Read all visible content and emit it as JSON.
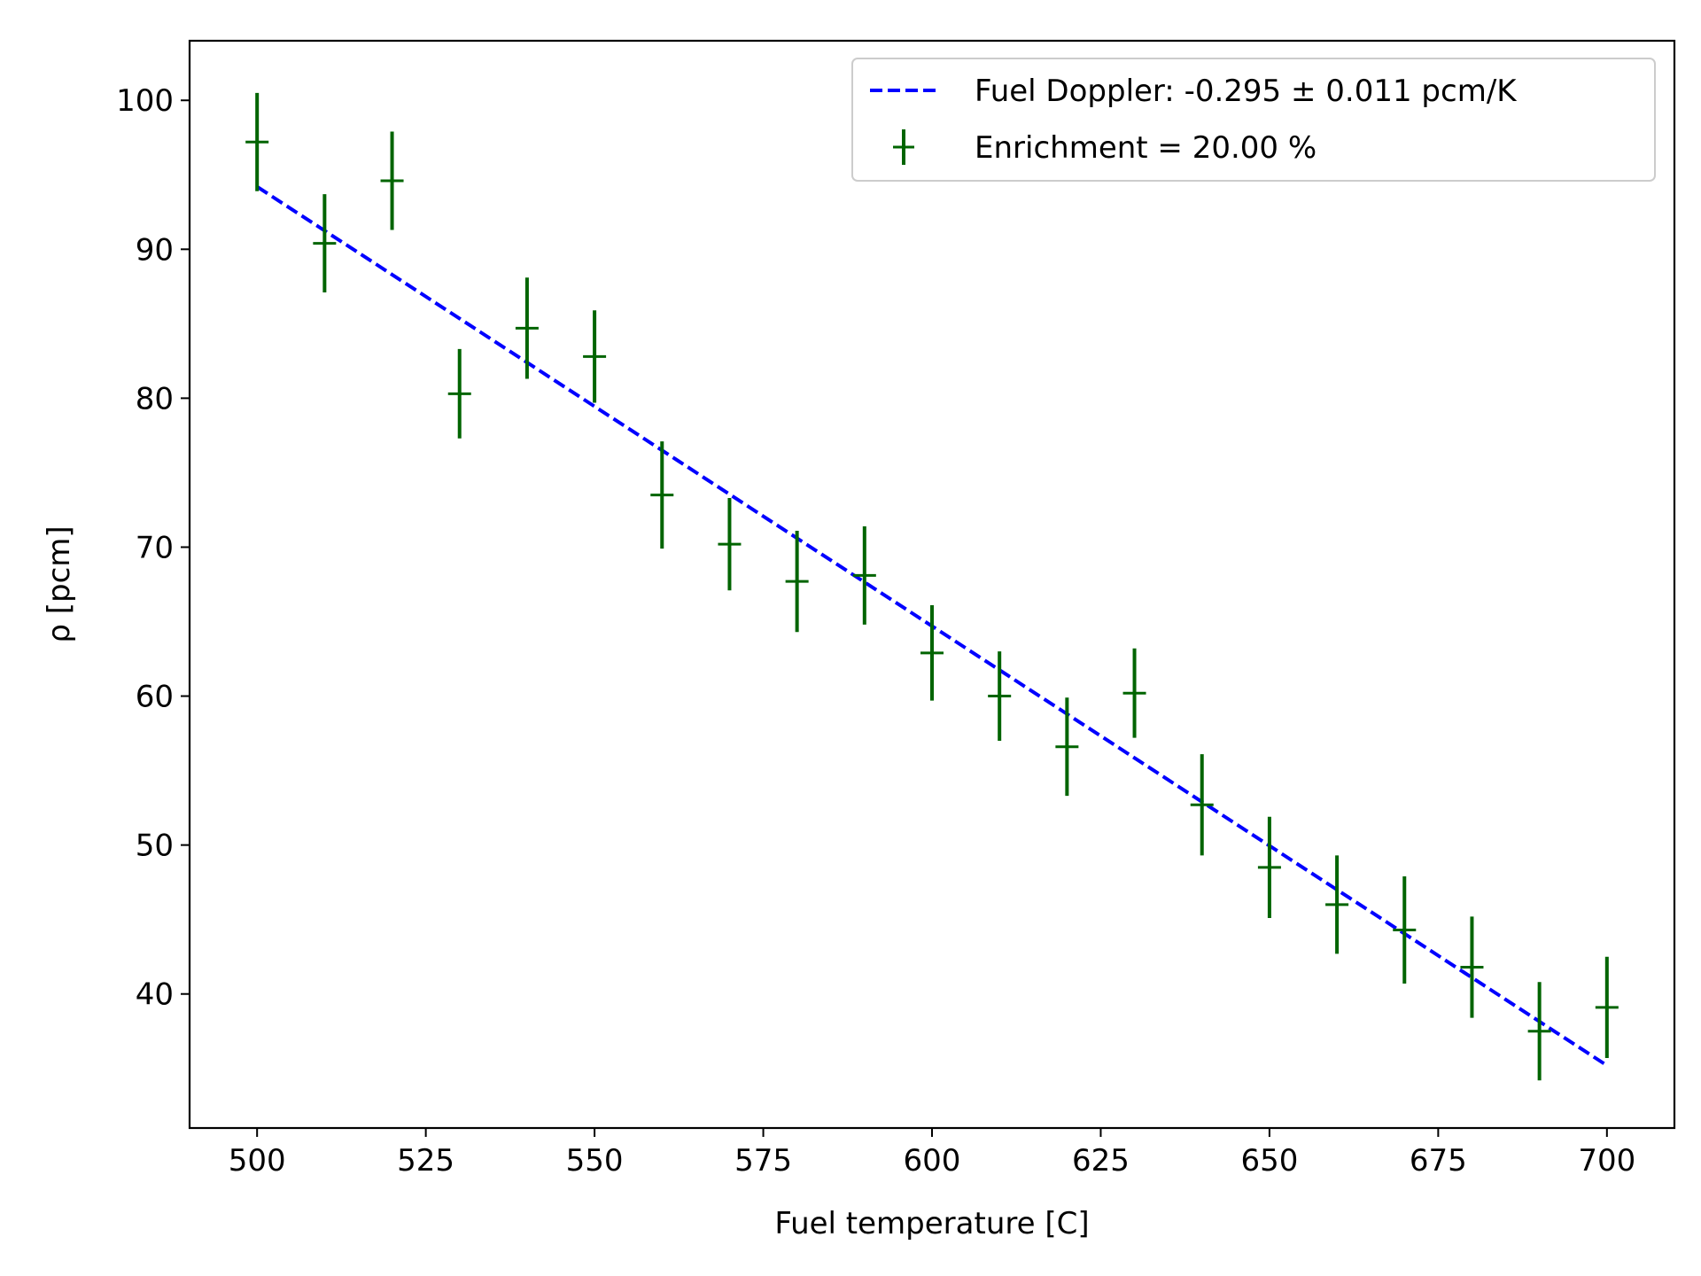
{
  "chart_data": {
    "type": "scatter",
    "xlabel": "Fuel temperature [C]",
    "ylabel": "ρ [pcm]",
    "xlim": [
      490,
      710
    ],
    "ylim": [
      31,
      104
    ],
    "xticks": [
      500,
      525,
      550,
      575,
      600,
      625,
      650,
      675,
      700
    ],
    "yticks": [
      40,
      50,
      60,
      70,
      80,
      90,
      100
    ],
    "grid": false,
    "legend_position": "top-right",
    "series": [
      {
        "name": "Fuel Doppler: -0.295 ± 0.011 pcm/K",
        "kind": "fit-line",
        "style": "dashed",
        "color": "#0000ff",
        "x": [
          500,
          700
        ],
        "y": [
          94.2,
          35.2
        ]
      },
      {
        "name": "Enrichment = 20.00 %",
        "kind": "errorbar",
        "color": "#006400",
        "x": [
          500,
          510,
          520,
          530,
          540,
          550,
          560,
          570,
          580,
          590,
          600,
          610,
          620,
          630,
          640,
          650,
          660,
          670,
          680,
          690,
          700
        ],
        "y": [
          97.2,
          90.4,
          94.6,
          80.3,
          84.7,
          82.8,
          73.5,
          70.2,
          67.7,
          68.1,
          62.9,
          60.0,
          56.6,
          60.2,
          52.7,
          48.5,
          46.0,
          44.3,
          41.8,
          37.5,
          39.1
        ],
        "yerr": [
          3.3,
          3.3,
          3.3,
          3.0,
          3.4,
          3.1,
          3.6,
          3.1,
          3.4,
          3.3,
          3.2,
          3.0,
          3.3,
          3.0,
          3.4,
          3.4,
          3.3,
          3.6,
          3.4,
          3.3,
          3.4
        ]
      }
    ]
  }
}
